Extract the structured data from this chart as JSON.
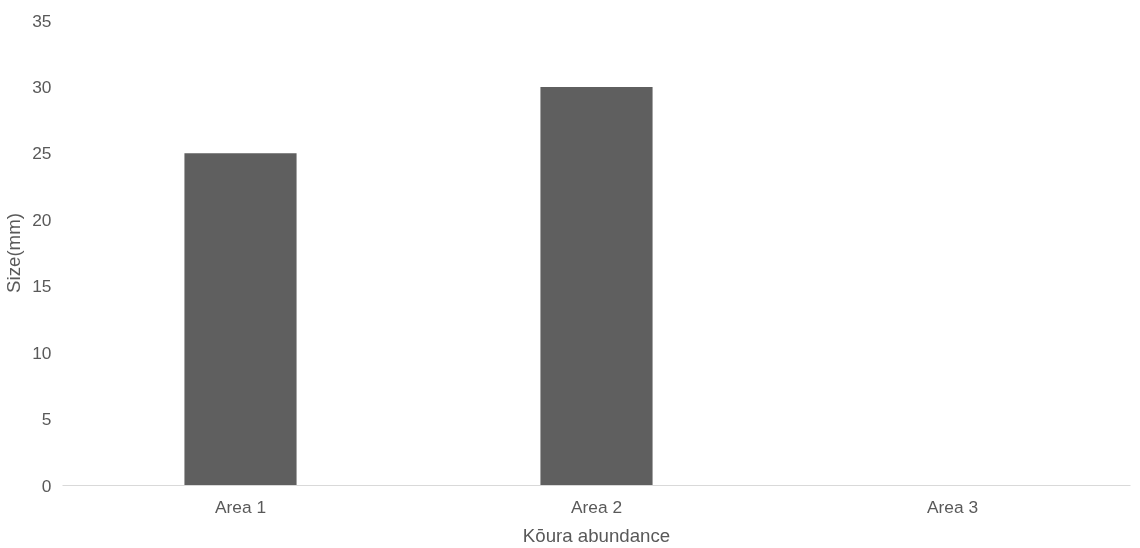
{
  "chart_data": {
    "type": "bar",
    "xlabel": "Kōura abundance",
    "ylabel": "Size(mm)",
    "categories": [
      "Area 1",
      "Area 2",
      "Area 3"
    ],
    "values": [
      25,
      30,
      0
    ],
    "color": "#5f5f5f",
    "ylim": [
      0,
      35
    ],
    "yticks": [
      0,
      5,
      10,
      15,
      20,
      25,
      30,
      35
    ]
  }
}
